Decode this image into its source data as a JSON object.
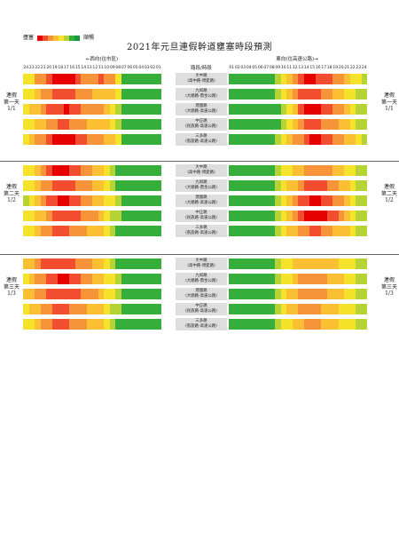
{
  "title": "2021年元旦連假幹道壅塞時段預測",
  "legend": {
    "left_label": "壅塞",
    "right_label": "順暢",
    "colors": [
      "#e60000",
      "#f24d2e",
      "#f7943a",
      "#fbbf33",
      "#f5e22b",
      "#b5d334",
      "#35ae3c",
      "#1a9641"
    ]
  },
  "headers": {
    "west_direction": "←西向(往市區)",
    "east_direction": "東向(往高速公路)→",
    "center": "路段/時段"
  },
  "ticks": {
    "west": [
      "24",
      "23",
      "22",
      "21",
      "20",
      "19",
      "18",
      "17",
      "16",
      "15",
      "14",
      "13",
      "12",
      "11",
      "10",
      "09",
      "08",
      "07",
      "06",
      "05",
      "04",
      "03",
      "02",
      "01"
    ],
    "east": [
      "01",
      "02",
      "03",
      "04",
      "05",
      "06",
      "07",
      "08",
      "09",
      "10",
      "11",
      "12",
      "13",
      "14",
      "15",
      "16",
      "17",
      "18",
      "19",
      "20",
      "21",
      "22",
      "23",
      "24"
    ]
  },
  "segments": [
    {
      "name": "大中路",
      "sub": "(高中路-博愛路)"
    },
    {
      "name": "九如路",
      "sub": "(大順路-鼎金公路)"
    },
    {
      "name": "建國路",
      "sub": "(大順路-高速公路)"
    },
    {
      "name": "中正路",
      "sub": "(民族路-高速公路)"
    },
    {
      "name": "三多路",
      "sub": "(凱旋路-高速公路)"
    }
  ],
  "chart_data": {
    "type": "heatmap",
    "title": "2021年元旦連假幹道壅塞時段預測",
    "value_scale": "0 = 順暢 (green) … 7 = 壅塞 (red)",
    "days": [
      {
        "left_label": "連假\n第一天\n1/1",
        "right_label": "連假\n第一天\n1/1",
        "rows": [
          {
            "west": [
              3,
              3,
              5,
              5,
              6,
              7,
              7,
              7,
              7,
              6,
              5,
              5,
              5,
              6,
              5,
              5,
              3,
              1,
              1,
              1,
              1,
              1,
              1,
              1
            ],
            "east": [
              1,
              1,
              1,
              1,
              1,
              1,
              1,
              1,
              2,
              3,
              4,
              5,
              6,
              7,
              7,
              6,
              6,
              6,
              5,
              5,
              4,
              3,
              3,
              2
            ]
          },
          {
            "west": [
              3,
              3,
              4,
              5,
              5,
              6,
              6,
              6,
              6,
              5,
              5,
              5,
              4,
              4,
              4,
              4,
              3,
              1,
              1,
              1,
              1,
              1,
              1,
              1
            ],
            "east": [
              1,
              1,
              1,
              1,
              1,
              1,
              1,
              1,
              2,
              3,
              4,
              5,
              6,
              6,
              6,
              6,
              5,
              5,
              4,
              4,
              3,
              3,
              2,
              2
            ]
          },
          {
            "west": [
              3,
              4,
              4,
              5,
              6,
              6,
              6,
              7,
              6,
              6,
              5,
              5,
              5,
              5,
              4,
              3,
              2,
              1,
              1,
              1,
              1,
              1,
              1,
              1
            ],
            "east": [
              1,
              1,
              1,
              1,
              1,
              1,
              1,
              1,
              1,
              2,
              3,
              4,
              6,
              7,
              7,
              7,
              6,
              6,
              5,
              5,
              4,
              3,
              2,
              2
            ]
          },
          {
            "west": [
              3,
              3,
              4,
              4,
              5,
              5,
              6,
              6,
              5,
              5,
              5,
              4,
              4,
              4,
              4,
              3,
              2,
              1,
              1,
              1,
              1,
              1,
              1,
              1
            ],
            "east": [
              1,
              1,
              1,
              1,
              1,
              1,
              1,
              1,
              1,
              2,
              3,
              4,
              5,
              6,
              6,
              6,
              5,
              5,
              5,
              4,
              4,
              3,
              2,
              2
            ]
          },
          {
            "west": [
              3,
              4,
              5,
              5,
              6,
              7,
              7,
              7,
              7,
              6,
              6,
              5,
              5,
              5,
              4,
              4,
              3,
              1,
              1,
              1,
              1,
              1,
              1,
              1
            ],
            "east": [
              1,
              1,
              1,
              1,
              1,
              1,
              1,
              1,
              2,
              3,
              4,
              5,
              5,
              6,
              7,
              7,
              6,
              6,
              5,
              5,
              4,
              4,
              3,
              2
            ]
          }
        ]
      },
      {
        "left_label": "連假\n第二天\n1/2",
        "right_label": "連假\n第二天\n1/2",
        "rows": [
          {
            "west": [
              3,
              3,
              4,
              5,
              6,
              7,
              7,
              7,
              6,
              6,
              5,
              5,
              4,
              4,
              3,
              2,
              1,
              1,
              1,
              1,
              1,
              1,
              1,
              1
            ],
            "east": [
              1,
              1,
              1,
              1,
              1,
              1,
              1,
              1,
              2,
              3,
              3,
              4,
              4,
              5,
              5,
              5,
              5,
              5,
              4,
              4,
              3,
              3,
              2,
              2
            ]
          },
          {
            "west": [
              3,
              3,
              4,
              5,
              5,
              6,
              6,
              6,
              6,
              5,
              5,
              5,
              4,
              4,
              3,
              2,
              1,
              1,
              1,
              1,
              1,
              1,
              1,
              1
            ],
            "east": [
              1,
              1,
              1,
              1,
              1,
              1,
              1,
              1,
              2,
              3,
              4,
              4,
              5,
              6,
              6,
              6,
              6,
              5,
              5,
              4,
              4,
              3,
              2,
              2
            ]
          },
          {
            "west": [
              2,
              3,
              4,
              5,
              6,
              6,
              7,
              7,
              6,
              6,
              5,
              5,
              4,
              4,
              3,
              3,
              2,
              1,
              1,
              1,
              1,
              1,
              1,
              1
            ],
            "east": [
              1,
              1,
              1,
              1,
              1,
              1,
              1,
              1,
              2,
              3,
              4,
              5,
              6,
              6,
              7,
              7,
              6,
              6,
              5,
              5,
              4,
              3,
              2,
              2
            ]
          },
          {
            "west": [
              3,
              3,
              4,
              4,
              5,
              6,
              6,
              6,
              6,
              6,
              5,
              5,
              5,
              4,
              3,
              2,
              2,
              1,
              1,
              1,
              1,
              1,
              1,
              1
            ],
            "east": [
              1,
              1,
              1,
              1,
              1,
              1,
              1,
              1,
              2,
              3,
              4,
              5,
              6,
              7,
              7,
              7,
              7,
              6,
              6,
              5,
              4,
              3,
              2,
              2
            ]
          },
          {
            "west": [
              3,
              3,
              4,
              5,
              5,
              6,
              6,
              6,
              5,
              5,
              5,
              4,
              4,
              4,
              3,
              2,
              1,
              1,
              1,
              1,
              1,
              1,
              1,
              1
            ],
            "east": [
              1,
              1,
              1,
              1,
              1,
              1,
              1,
              1,
              2,
              3,
              4,
              4,
              5,
              5,
              6,
              6,
              5,
              5,
              4,
              4,
              4,
              3,
              2,
              2
            ]
          }
        ]
      },
      {
        "left_label": "連假\n第三天\n1/3",
        "right_label": "連假\n第三天\n1/3",
        "rows": [
          {
            "west": [
              4,
              4,
              5,
              6,
              6,
              6,
              6,
              6,
              6,
              5,
              5,
              5,
              4,
              4,
              3,
              2,
              1,
              1,
              1,
              1,
              1,
              1,
              1,
              1
            ],
            "east": [
              1,
              1,
              1,
              1,
              1,
              1,
              1,
              1,
              2,
              3,
              3,
              4,
              4,
              4,
              4,
              4,
              4,
              4,
              4,
              3,
              3,
              3,
              2,
              2
            ]
          },
          {
            "west": [
              3,
              4,
              5,
              5,
              6,
              6,
              7,
              7,
              6,
              6,
              5,
              5,
              4,
              4,
              3,
              3,
              2,
              1,
              1,
              1,
              1,
              1,
              1,
              1
            ],
            "east": [
              1,
              1,
              1,
              1,
              1,
              1,
              1,
              1,
              2,
              3,
              3,
              4,
              5,
              5,
              5,
              5,
              5,
              4,
              4,
              4,
              3,
              3,
              2,
              2
            ]
          },
          {
            "west": [
              4,
              4,
              5,
              5,
              6,
              6,
              6,
              6,
              6,
              6,
              5,
              5,
              5,
              4,
              3,
              3,
              2,
              1,
              1,
              1,
              1,
              1,
              1,
              1
            ],
            "east": [
              1,
              1,
              1,
              1,
              1,
              1,
              1,
              1,
              2,
              3,
              4,
              4,
              5,
              5,
              5,
              5,
              5,
              4,
              4,
              4,
              3,
              3,
              2,
              2
            ]
          },
          {
            "west": [
              3,
              4,
              4,
              5,
              5,
              6,
              6,
              6,
              5,
              5,
              5,
              4,
              4,
              4,
              3,
              2,
              2,
              1,
              1,
              1,
              1,
              1,
              1,
              1
            ],
            "east": [
              1,
              1,
              1,
              1,
              1,
              1,
              1,
              1,
              2,
              3,
              4,
              4,
              5,
              5,
              5,
              5,
              4,
              4,
              4,
              3,
              3,
              3,
              2,
              2
            ]
          },
          {
            "west": [
              3,
              3,
              4,
              5,
              5,
              6,
              6,
              6,
              5,
              5,
              5,
              4,
              4,
              4,
              3,
              2,
              1,
              1,
              1,
              1,
              1,
              1,
              1,
              1
            ],
            "east": [
              1,
              1,
              1,
              1,
              1,
              1,
              1,
              1,
              2,
              3,
              3,
              4,
              4,
              5,
              5,
              5,
              4,
              4,
              4,
              3,
              3,
              3,
              2,
              2
            ]
          }
        ]
      }
    ]
  }
}
